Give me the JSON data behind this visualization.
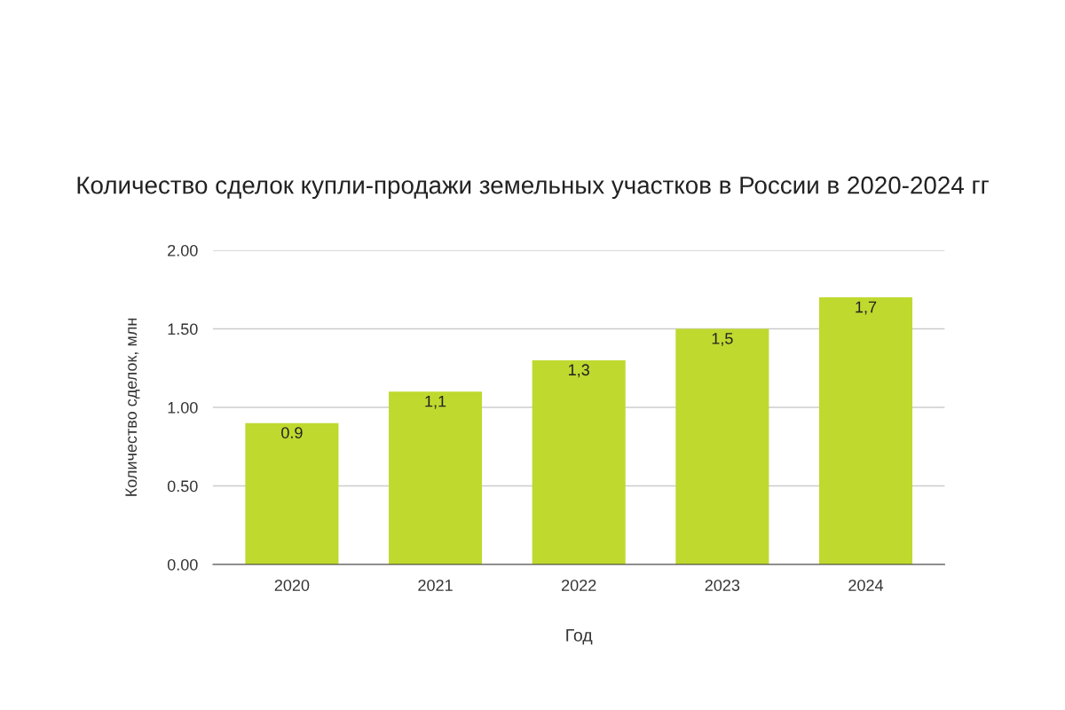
{
  "chart_data": {
    "type": "bar",
    "title": "Количество сделок купли-продажи земельных участков в России в 2020-2024 гг",
    "xlabel": "Год",
    "ylabel": "Количество сделок, млн",
    "categories": [
      "2020",
      "2021",
      "2022",
      "2023",
      "2024"
    ],
    "values": [
      0.9,
      1.1,
      1.3,
      1.5,
      1.7
    ],
    "value_labels": [
      "0.9",
      "1,1",
      "1,3",
      "1,5",
      "1,7"
    ],
    "color": "#bfd92f",
    "ylim": [
      0,
      2
    ],
    "yticks": [
      {
        "value": 0,
        "label": "0.00"
      },
      {
        "value": 0.5,
        "label": "0.50"
      },
      {
        "value": 1,
        "label": "1.00"
      },
      {
        "value": 1.5,
        "label": "1.50"
      },
      {
        "value": 2,
        "label": "2.00"
      }
    ],
    "grid": "y"
  }
}
